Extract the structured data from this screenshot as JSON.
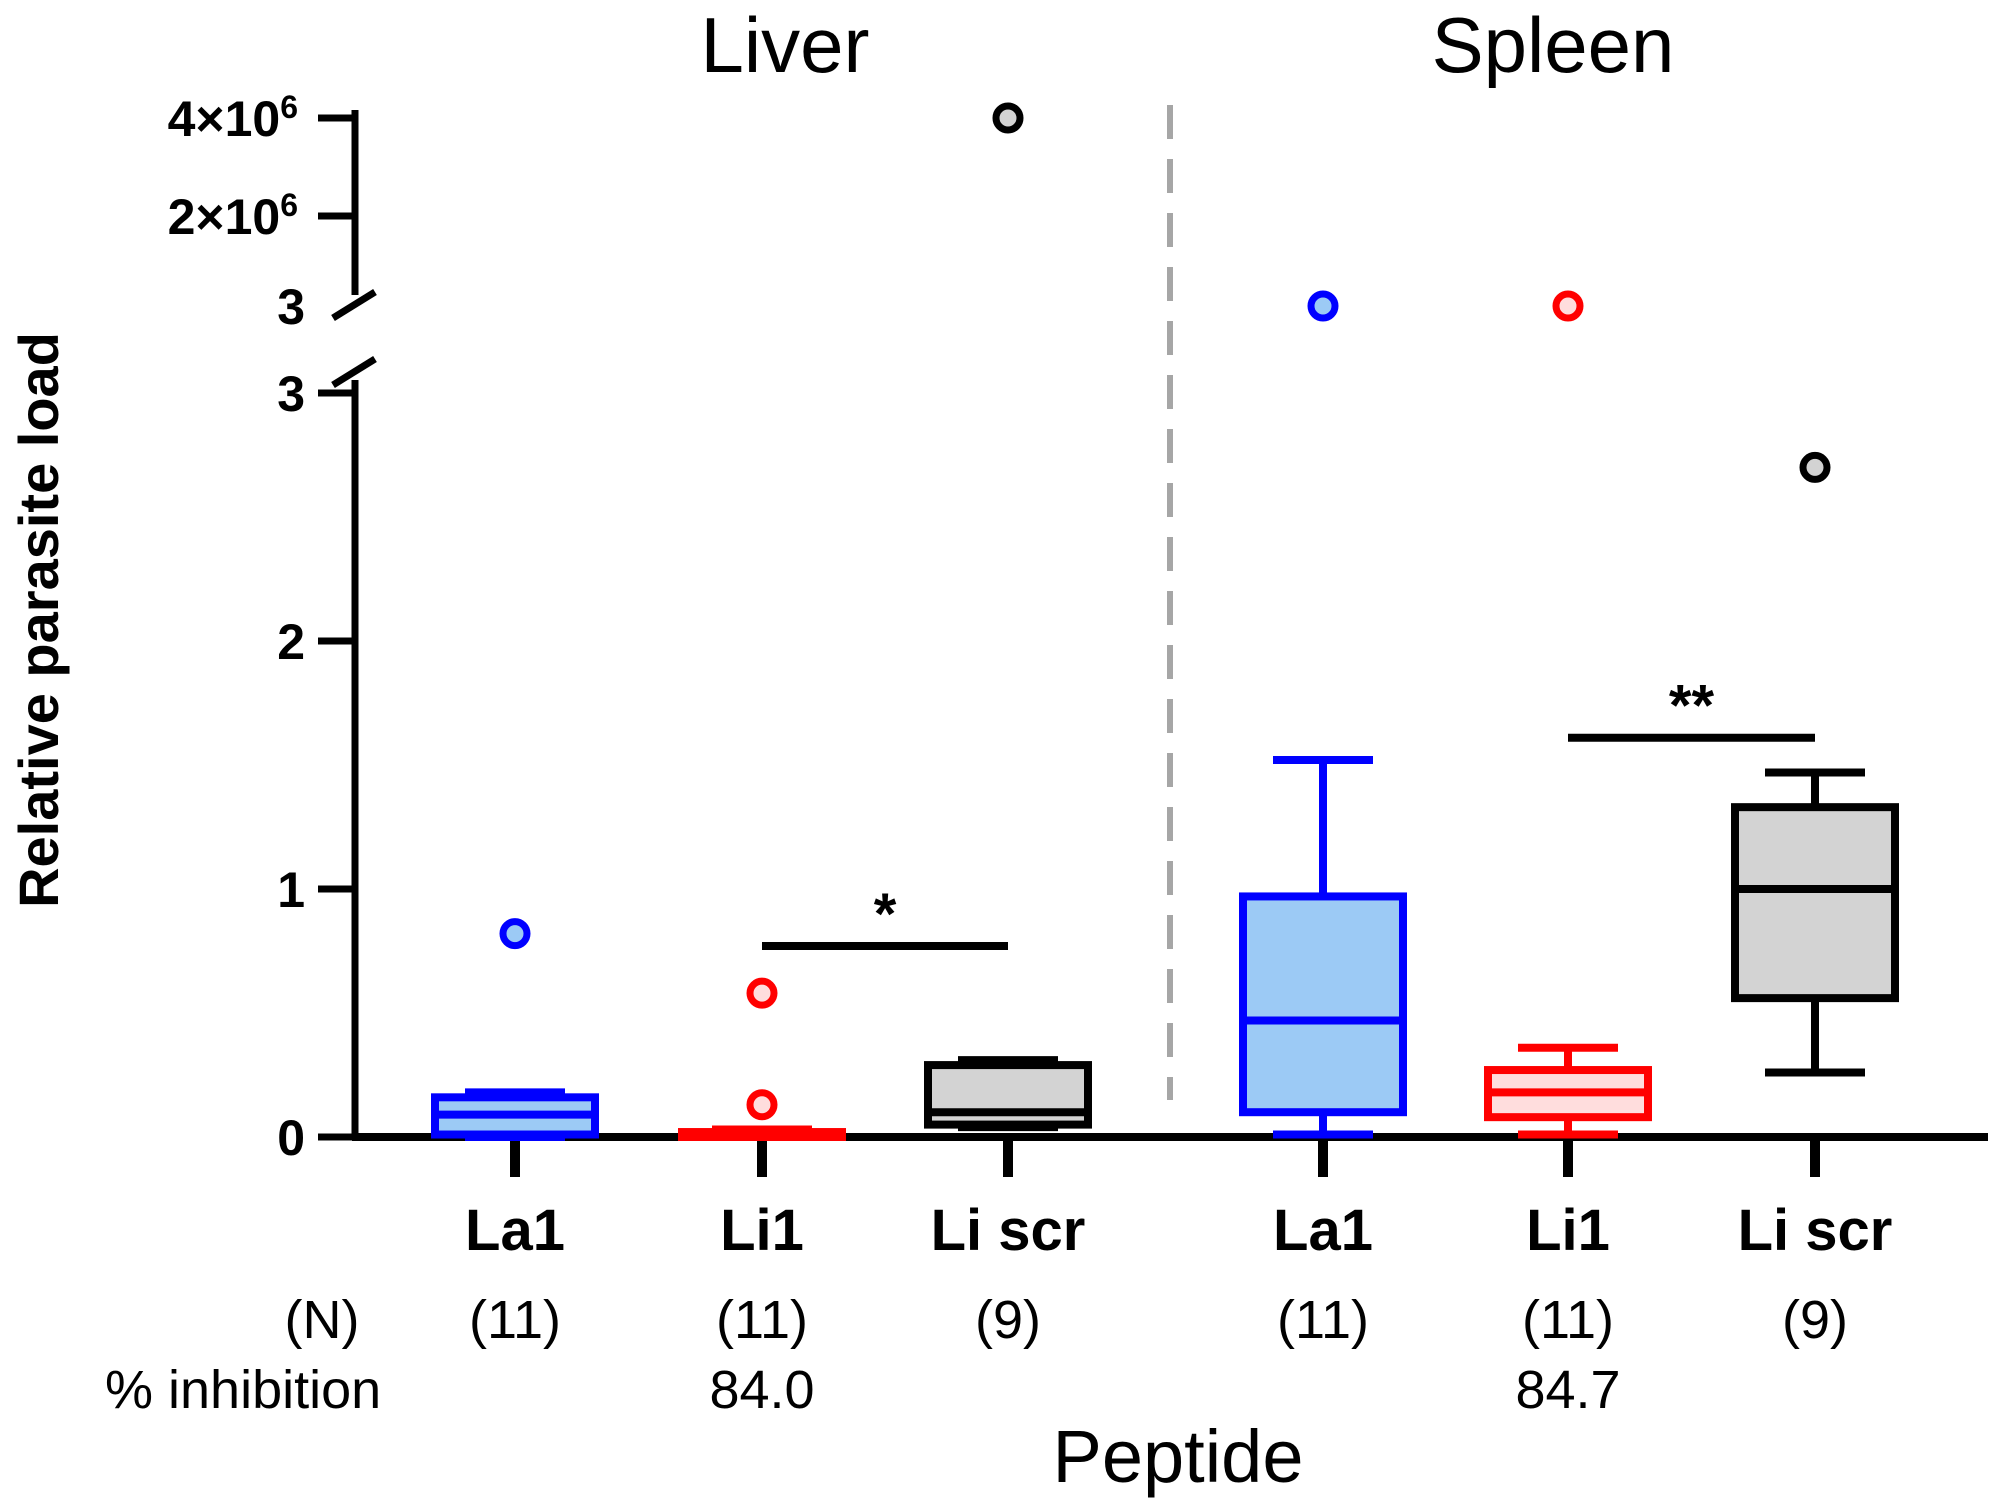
{
  "chart_data": {
    "type": "box",
    "ylabel": "Relative parasite load",
    "xlabel": "Peptide",
    "y_axis_segments": {
      "lower": {
        "range": [
          0,
          3
        ],
        "ticks": [
          {
            "value": 0,
            "label": "0"
          },
          {
            "value": 1,
            "label": "1"
          },
          {
            "value": 2,
            "label": "2"
          },
          {
            "value": 3,
            "label": "3"
          }
        ]
      },
      "middle": {
        "ticks": [
          {
            "value": 3,
            "label": "3"
          }
        ]
      },
      "upper": {
        "ticks": [
          {
            "value": 2000000,
            "mantissa": "2×10",
            "exp": "6"
          },
          {
            "value": 4000000,
            "mantissa": "4×10",
            "exp": "6"
          }
        ]
      }
    },
    "row_labels": {
      "n": "(N)",
      "inhibition": "% inhibition"
    },
    "colors": {
      "La1": {
        "stroke": "#0000ff",
        "fill": "#9ccaf5"
      },
      "Li1": {
        "stroke": "#ff0000",
        "fill": "#ffdddd"
      },
      "Li scr": {
        "stroke": "#000000",
        "fill": "#d3d3d3"
      },
      "divider": "#a6a6a6"
    },
    "panels": [
      {
        "title": "Liver",
        "groups": [
          {
            "name": "La1",
            "n": "(11)",
            "inhibition": "",
            "whisker_low": 0,
            "q1": 0.01,
            "median": 0.09,
            "q3": 0.16,
            "whisker_high": 0.18,
            "outliers": [
              0.82
            ]
          },
          {
            "name": "Li1",
            "n": "(11)",
            "inhibition": "84.0",
            "whisker_low": 0,
            "q1": 0,
            "median": 0.01,
            "q3": 0.02,
            "whisker_high": 0.03,
            "outliers": [
              0.58,
              0.13
            ]
          },
          {
            "name": "Li scr",
            "n": "(9)",
            "inhibition": "",
            "whisker_low": 0.04,
            "q1": 0.05,
            "median": 0.1,
            "q3": 0.29,
            "whisker_high": 0.31,
            "outliers": [
              4000000
            ]
          }
        ],
        "significance": [
          {
            "from": "Li1",
            "to": "Li scr",
            "y": 0.77,
            "label": "*"
          }
        ]
      },
      {
        "title": "Spleen",
        "groups": [
          {
            "name": "La1",
            "n": "(11)",
            "inhibition": "",
            "whisker_low": 0.01,
            "q1": 0.1,
            "median": 0.47,
            "q3": 0.97,
            "whisker_high": 1.52,
            "outliers": [
              3.3
            ]
          },
          {
            "name": "Li1",
            "n": "(11)",
            "inhibition": "84.7",
            "whisker_low": 0.01,
            "q1": 0.08,
            "median": 0.18,
            "q3": 0.27,
            "whisker_high": 0.36,
            "outliers": [
              3.3
            ]
          },
          {
            "name": "Li scr",
            "n": "(9)",
            "inhibition": "",
            "whisker_low": 0.26,
            "q1": 0.56,
            "median": 1.0,
            "q3": 1.33,
            "whisker_high": 1.47,
            "outliers": [
              2.7
            ]
          }
        ],
        "significance": [
          {
            "from": "Li1",
            "to": "Li scr",
            "y": 1.61,
            "label": "**"
          }
        ]
      }
    ]
  }
}
